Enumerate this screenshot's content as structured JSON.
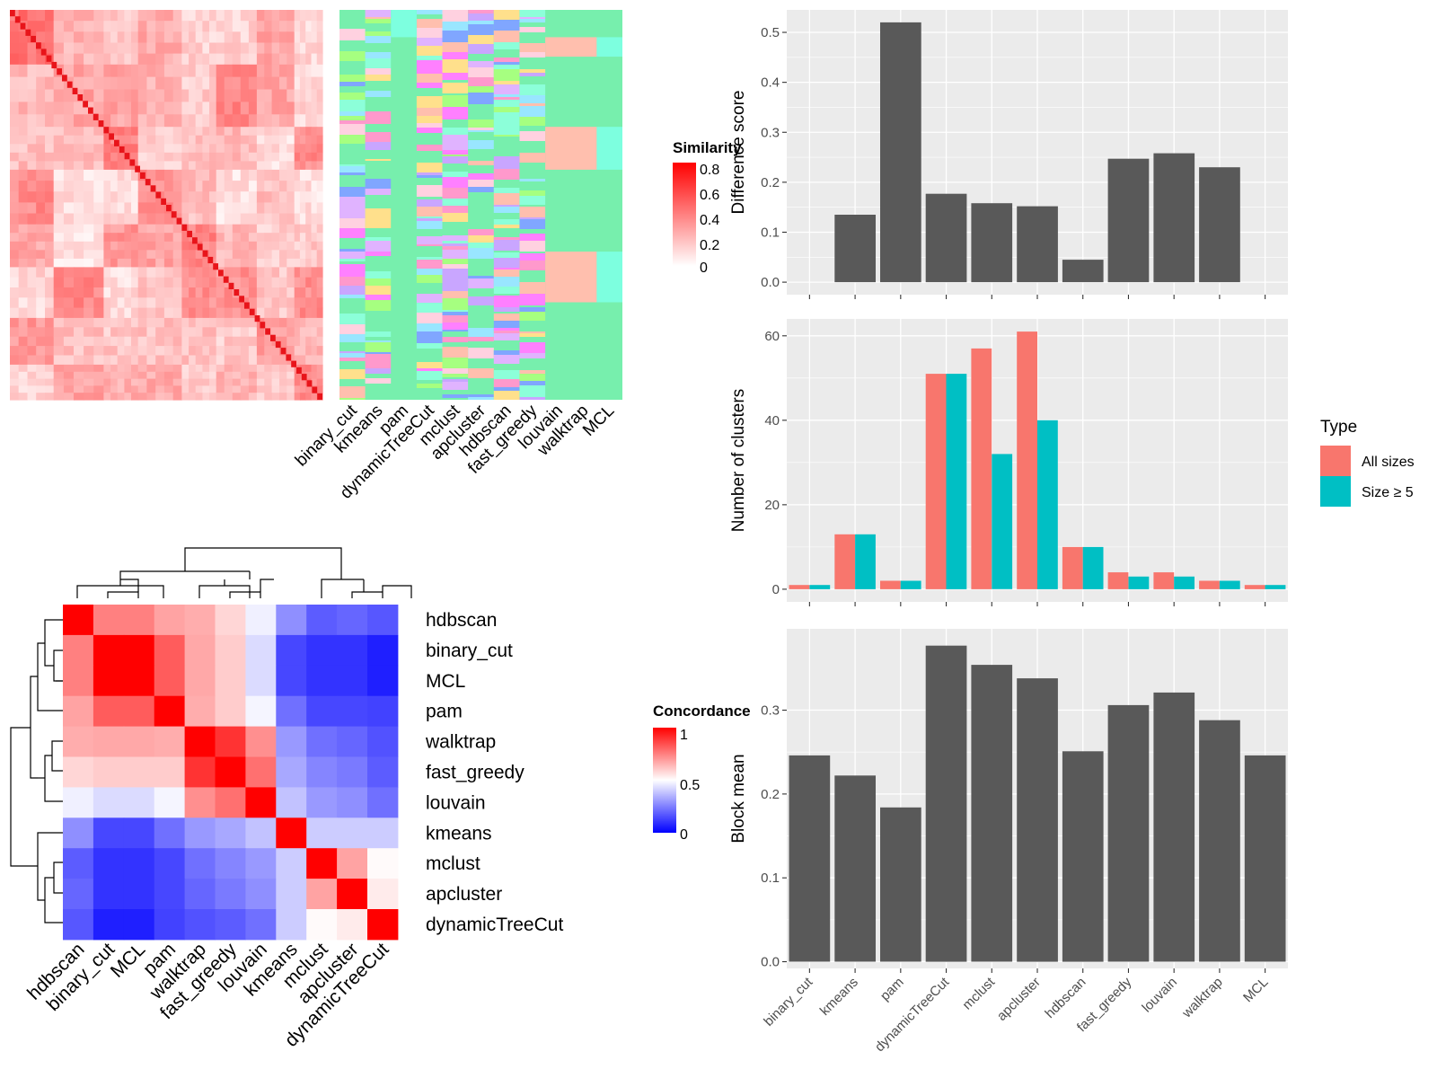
{
  "methods_order": [
    "binary_cut",
    "kmeans",
    "pam",
    "dynamicTreeCut",
    "mclust",
    "apcluster",
    "hdbscan",
    "fast_greedy",
    "louvain",
    "walktrap",
    "MCL"
  ],
  "similarity_heatmap": {
    "legend_title": "Similarity",
    "legend_ticks": [
      "0.8",
      "0.6",
      "0.4",
      "0.2",
      "0"
    ],
    "colors": {
      "high": "#ff0000",
      "low": "#ffffff"
    }
  },
  "assignment_panel": {
    "columns": [
      "binary_cut",
      "kmeans",
      "pam",
      "dynamicTreeCut",
      "mclust",
      "apcluster",
      "hdbscan",
      "fast_greedy",
      "louvain",
      "walktrap",
      "MCL"
    ],
    "background_color": "#77efad",
    "block_color": "#ffbfae",
    "accent_color": "#7dffdf"
  },
  "concordance_heatmap": {
    "legend_title": "Concordance",
    "legend_ticks": [
      "1",
      "0.5",
      "0"
    ],
    "order": [
      "hdbscan",
      "binary_cut",
      "MCL",
      "pam",
      "walktrap",
      "fast_greedy",
      "louvain",
      "kmeans",
      "mclust",
      "apcluster",
      "dynamicTreeCut"
    ],
    "matrix": [
      [
        1.0,
        0.75,
        0.75,
        0.68,
        0.66,
        0.58,
        0.47,
        0.28,
        0.18,
        0.2,
        0.17
      ],
      [
        0.75,
        1.0,
        1.0,
        0.82,
        0.67,
        0.6,
        0.43,
        0.14,
        0.1,
        0.1,
        0.06
      ],
      [
        0.75,
        1.0,
        1.0,
        0.82,
        0.67,
        0.6,
        0.43,
        0.14,
        0.1,
        0.1,
        0.06
      ],
      [
        0.68,
        0.82,
        0.82,
        1.0,
        0.66,
        0.6,
        0.48,
        0.22,
        0.14,
        0.14,
        0.13
      ],
      [
        0.66,
        0.67,
        0.67,
        0.66,
        1.0,
        0.9,
        0.72,
        0.3,
        0.22,
        0.2,
        0.16
      ],
      [
        0.58,
        0.6,
        0.6,
        0.6,
        0.9,
        1.0,
        0.78,
        0.33,
        0.26,
        0.24,
        0.18
      ],
      [
        0.47,
        0.43,
        0.43,
        0.48,
        0.72,
        0.78,
        1.0,
        0.38,
        0.3,
        0.28,
        0.22
      ],
      [
        0.28,
        0.14,
        0.14,
        0.22,
        0.3,
        0.33,
        0.38,
        1.0,
        0.4,
        0.4,
        0.4
      ],
      [
        0.18,
        0.1,
        0.1,
        0.14,
        0.22,
        0.26,
        0.3,
        0.4,
        1.0,
        0.68,
        0.51
      ],
      [
        0.2,
        0.1,
        0.1,
        0.14,
        0.2,
        0.24,
        0.28,
        0.4,
        0.68,
        1.0,
        0.54
      ],
      [
        0.17,
        0.06,
        0.06,
        0.13,
        0.16,
        0.18,
        0.22,
        0.4,
        0.51,
        0.54,
        1.0
      ]
    ],
    "colors": {
      "high": "#ff0000",
      "mid": "#ffffff",
      "low": "#0000ff"
    }
  },
  "chart_data": [
    {
      "type": "bar",
      "title": "",
      "xlabel": "",
      "ylabel": "Difference score",
      "categories": [
        "binary_cut",
        "kmeans",
        "pam",
        "dynamicTreeCut",
        "mclust",
        "apcluster",
        "hdbscan",
        "fast_greedy",
        "louvain",
        "walktrap",
        "MCL"
      ],
      "values": [
        0,
        0.135,
        0.52,
        0.177,
        0.158,
        0.152,
        0.045,
        0.247,
        0.258,
        0.23,
        0
      ],
      "ylim": [
        -0.025,
        0.545
      ],
      "yticks": [
        "0.0",
        "0.1",
        "0.2",
        "0.3",
        "0.4",
        "0.5"
      ],
      "bar_color": "#595959",
      "grid": true
    },
    {
      "type": "bar",
      "title": "",
      "xlabel": "",
      "ylabel": "Number of clusters",
      "categories": [
        "binary_cut",
        "kmeans",
        "pam",
        "dynamicTreeCut",
        "mclust",
        "apcluster",
        "hdbscan",
        "fast_greedy",
        "louvain",
        "walktrap",
        "MCL"
      ],
      "series": [
        {
          "name": "All sizes",
          "color": "#f8766d",
          "values": [
            1,
            13,
            2,
            51,
            57,
            61,
            10,
            4,
            4,
            2,
            1
          ]
        },
        {
          "name": "Size ≥ 5",
          "color": "#00bfc4",
          "values": [
            1,
            13,
            2,
            51,
            32,
            40,
            10,
            3,
            3,
            2,
            1
          ]
        }
      ],
      "ylim": [
        -3,
        64
      ],
      "yticks": [
        "0",
        "20",
        "40",
        "60"
      ],
      "legend_title": "Type",
      "legend_position": "right",
      "grid": true
    },
    {
      "type": "bar",
      "title": "",
      "xlabel": "",
      "ylabel": "Block mean",
      "categories": [
        "binary_cut",
        "kmeans",
        "pam",
        "dynamicTreeCut",
        "mclust",
        "apcluster",
        "hdbscan",
        "fast_greedy",
        "louvain",
        "walktrap",
        "MCL"
      ],
      "values": [
        0.246,
        0.222,
        0.184,
        0.377,
        0.354,
        0.338,
        0.251,
        0.306,
        0.321,
        0.288,
        0.246
      ],
      "ylim": [
        -0.008,
        0.397
      ],
      "yticks": [
        "0.0",
        "0.1",
        "0.2",
        "0.3"
      ],
      "bar_color": "#595959",
      "grid": true
    }
  ]
}
